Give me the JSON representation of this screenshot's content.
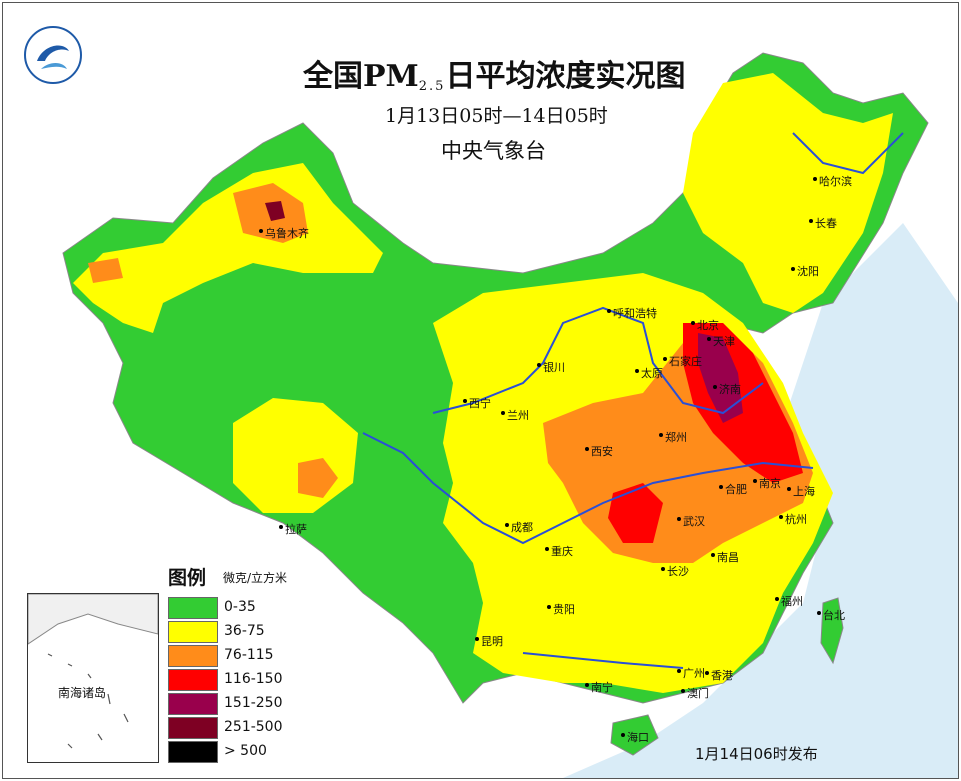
{
  "header": {
    "title_main": "全国PM",
    "title_sub": "2.5",
    "title_rest": "日平均浓度实况图",
    "period": "1月13日05时—14日05时",
    "agency": "中央气象台"
  },
  "legend": {
    "title": "图例",
    "unit": "微克/立方米",
    "items": [
      {
        "label": "0-35",
        "color": "#33cc33"
      },
      {
        "label": "36-75",
        "color": "#ffff00"
      },
      {
        "label": "76-115",
        "color": "#ff8c1a"
      },
      {
        "label": "116-150",
        "color": "#ff0000"
      },
      {
        "label": "151-250",
        "color": "#99004c"
      },
      {
        "label": "251-500",
        "color": "#7e0023"
      },
      {
        "label": "> 500",
        "color": "#000000"
      }
    ]
  },
  "inset": {
    "label": "南海诸岛"
  },
  "cities": {
    "urumqi": "乌鲁木齐",
    "harbin": "哈尔滨",
    "changchun": "长春",
    "shenyang": "沈阳",
    "hohhot": "呼和浩特",
    "beijing": "北京",
    "tianjin": "天津",
    "shijiazhuang": "石家庄",
    "taiyuan": "太原",
    "jinan": "济南",
    "yinchuan": "银川",
    "xining": "西宁",
    "lanzhou": "兰州",
    "xian": "西安",
    "zhengzhou": "郑州",
    "nanjing": "南京",
    "hefei": "合肥",
    "shanghai": "上海",
    "lhasa": "拉萨",
    "chengdu": "成都",
    "chongqing": "重庆",
    "wuhan": "武汉",
    "hangzhou": "杭州",
    "changsha": "长沙",
    "nanchang": "南昌",
    "guiyang": "贵阳",
    "fuzhou": "福州",
    "taipei": "台北",
    "kunming": "昆明",
    "nanning": "南宁",
    "guangzhou": "广州",
    "hongkong": "香港",
    "macau": "澳门",
    "haikou": "海口"
  },
  "release": "1月14日06时发布",
  "colors": {
    "sea": "#d9ecf7",
    "river": "#2a4fd6",
    "border": "#8a8a8a"
  }
}
